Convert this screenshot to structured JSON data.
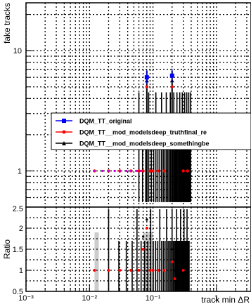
{
  "chart_data": [
    {
      "type": "line",
      "panel": "main",
      "ylabel": "fake tracks",
      "yscale": "log",
      "xscale": "log",
      "xlim": [
        0.001,
        3.5
      ],
      "ylim": [
        0.5,
        25
      ],
      "y_ticks": [
        1,
        10
      ],
      "y_tick_labels": [
        "1",
        "10"
      ],
      "grid": true,
      "legend": "middle-right",
      "series": [
        {
          "name": "DQM_TT_original",
          "color": "#0000ff",
          "marker": "square",
          "x": [
            0.08,
            0.2
          ],
          "y": [
            6.0,
            6.2
          ]
        },
        {
          "name": "DQM_TT__mod_modelsdeep_truthfinal_re",
          "color": "#ff0000",
          "marker": "circle",
          "x": [
            0.012,
            0.02,
            0.03,
            0.045,
            0.06,
            0.07,
            0.08,
            0.09,
            0.1,
            0.12,
            0.15,
            0.2,
            0.3,
            0.35
          ],
          "y": [
            1,
            1,
            1,
            1,
            1,
            1,
            5,
            1,
            1,
            1,
            1,
            5,
            1,
            1
          ]
        },
        {
          "name": "DQM_TT__mod_modelsdeep_somethingbe",
          "color": "#000000",
          "marker": "triangle",
          "x": [
            0.08,
            0.2
          ],
          "y": [
            5.6,
            5.6
          ]
        }
      ]
    },
    {
      "type": "scatter",
      "panel": "ratio",
      "xlabel": "track min ΔR",
      "ylabel": "Ratio",
      "xscale": "log",
      "xlim": [
        0.001,
        3.5
      ],
      "ylim": [
        0.5,
        2.5
      ],
      "y_ticks": [
        0.5,
        1,
        1.5,
        2
      ],
      "y_tick_labels": [
        "0.5",
        "1",
        "1.5",
        "2"
      ],
      "y_top_label": "2.5",
      "x_ticks": [
        0.001,
        0.01,
        0.1,
        1
      ],
      "x_tick_labels": [
        "10⁻³",
        "10⁻²",
        "10⁻¹",
        "1"
      ],
      "grid": true,
      "series": [
        {
          "name": "",
          "color": "#ff0000",
          "x": [
            0.012,
            0.02,
            0.03,
            0.045,
            0.06,
            0.07,
            0.08,
            0.09,
            0.1,
            0.12,
            0.15,
            0.2,
            0.22,
            0.3
          ],
          "y": [
            1,
            1,
            1,
            1,
            1,
            1.5,
            2,
            1,
            1,
            1,
            1,
            1.2,
            0.8,
            1
          ]
        },
        {
          "name": "",
          "color": "#000000",
          "x": [
            0.012,
            0.02,
            0.03,
            0.045,
            0.06,
            0.07,
            0.08,
            0.09,
            0.1,
            0.12,
            0.15,
            0.2,
            0.22,
            0.3
          ],
          "y": [
            1,
            1,
            1,
            1,
            1,
            1.8,
            2.2,
            1,
            1,
            1,
            1,
            1.5,
            1,
            1
          ]
        }
      ]
    }
  ]
}
